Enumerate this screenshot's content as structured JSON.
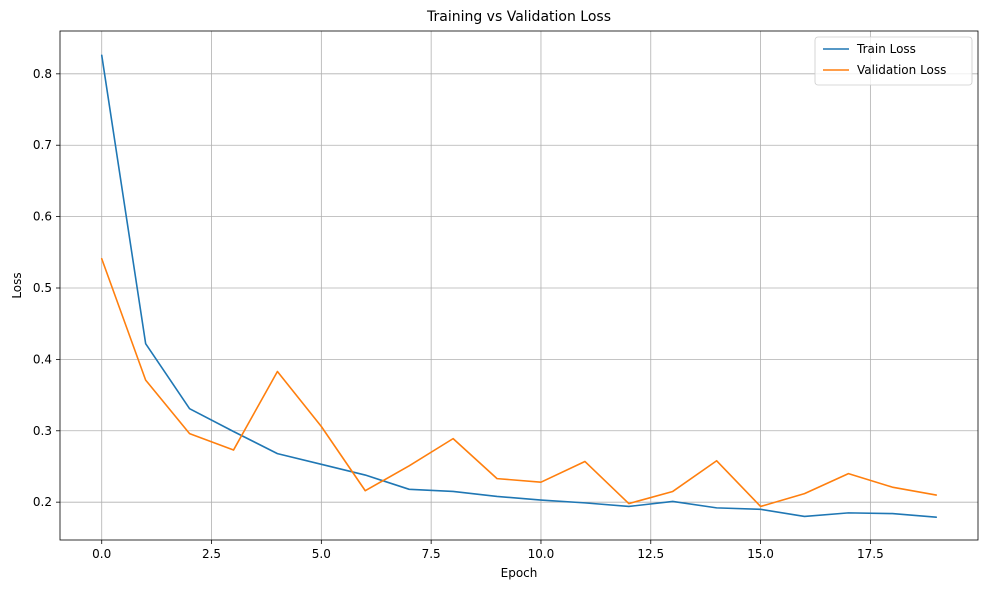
{
  "chart_data": {
    "type": "line",
    "title": "Training vs Validation Loss",
    "xlabel": "Epoch",
    "ylabel": "Loss",
    "x": [
      0,
      1,
      2,
      3,
      4,
      5,
      6,
      7,
      8,
      9,
      10,
      11,
      12,
      13,
      14,
      15,
      16,
      17,
      18,
      19
    ],
    "xlim": [
      -0.95,
      19.95
    ],
    "ylim": [
      0.147,
      0.86
    ],
    "xticks": [
      0.0,
      2.5,
      5.0,
      7.5,
      10.0,
      12.5,
      15.0,
      17.5
    ],
    "xtick_labels": [
      "0.0",
      "2.5",
      "5.0",
      "7.5",
      "10.0",
      "12.5",
      "15.0",
      "17.5"
    ],
    "yticks": [
      0.2,
      0.3,
      0.4,
      0.5,
      0.6,
      0.7,
      0.8
    ],
    "ytick_labels": [
      "0.2",
      "0.3",
      "0.4",
      "0.5",
      "0.6",
      "0.7",
      "0.8"
    ],
    "grid": true,
    "legend_position": "top-right",
    "series": [
      {
        "name": "Train Loss",
        "color": "#1f77b4",
        "values": [
          0.826,
          0.422,
          0.331,
          0.299,
          0.268,
          0.253,
          0.238,
          0.218,
          0.215,
          0.208,
          0.203,
          0.199,
          0.194,
          0.201,
          0.192,
          0.19,
          0.18,
          0.185,
          0.184,
          0.179
        ]
      },
      {
        "name": "Validation Loss",
        "color": "#ff7f0e",
        "values": [
          0.541,
          0.371,
          0.296,
          0.273,
          0.383,
          0.306,
          0.216,
          0.251,
          0.289,
          0.233,
          0.228,
          0.257,
          0.198,
          0.215,
          0.258,
          0.194,
          0.212,
          0.24,
          0.221,
          0.21
        ]
      }
    ]
  }
}
